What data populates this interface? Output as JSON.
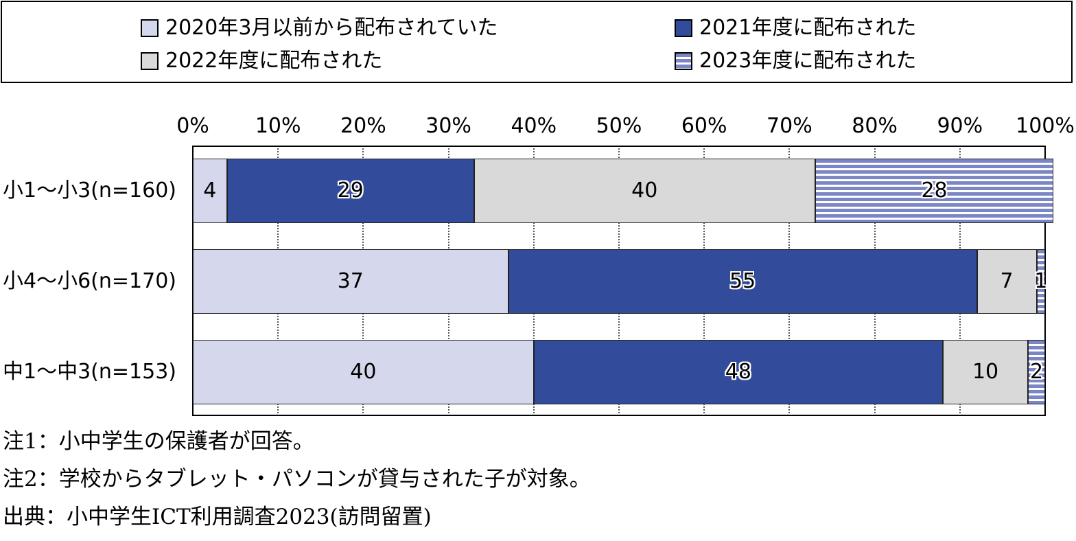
{
  "chart_data": {
    "type": "bar",
    "orientation": "horizontal",
    "stacked": true,
    "categories": [
      "小1～小3(n=160)",
      "小4～小6(n=170)",
      "中1～中3(n=153)"
    ],
    "series": [
      {
        "name": "2020年3月以前から配布されていた",
        "values": [
          4,
          37,
          40
        ],
        "color": "#d5d8ec",
        "pattern": "solid"
      },
      {
        "name": "2021年度に配布された",
        "values": [
          29,
          55,
          48
        ],
        "color": "#324b9a",
        "pattern": "solid"
      },
      {
        "name": "2022年度に配布された",
        "values": [
          40,
          7,
          10
        ],
        "color": "#d9d9d9",
        "pattern": "solid"
      },
      {
        "name": "2023年度に配布された",
        "values": [
          28,
          1,
          2
        ],
        "color": "#7b86c6",
        "pattern": "horizontal-stripes"
      }
    ],
    "xlim": [
      0,
      100
    ],
    "xticks": [
      "0%",
      "10%",
      "20%",
      "30%",
      "40%",
      "50%",
      "60%",
      "70%",
      "80%",
      "90%",
      "100%"
    ],
    "grid": true,
    "legend_position": "top"
  },
  "notes": [
    "注1：小中学生の保護者が回答。",
    "注2：学校からタブレット・パソコンが貸与された子が対象。",
    "出典：小中学生ICT利用調査2023(訪問留置)"
  ]
}
